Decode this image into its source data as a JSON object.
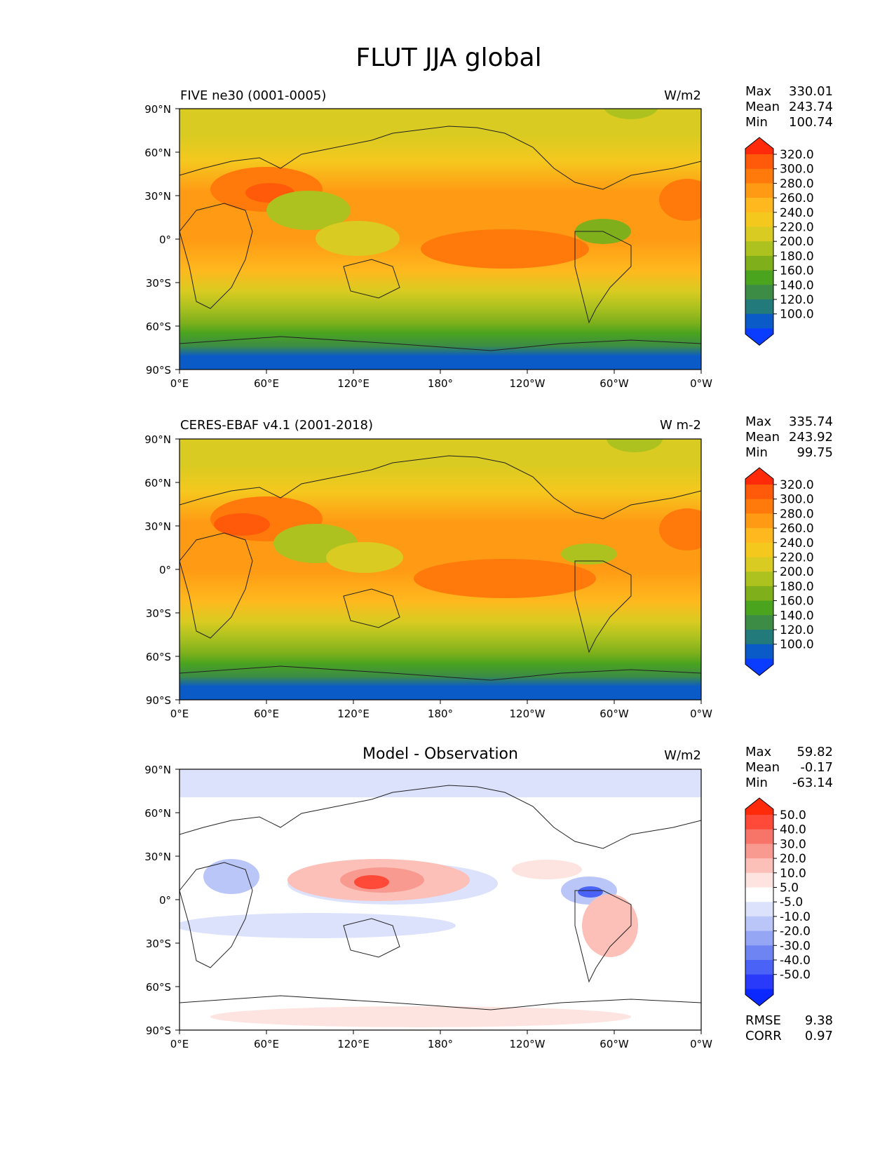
{
  "figure": {
    "title": "FLUT JJA global"
  },
  "axes": {
    "lat_ticks": [
      "90°N",
      "60°N",
      "30°N",
      "0°",
      "30°S",
      "60°S",
      "90°S"
    ],
    "lon_ticks": [
      "0°E",
      "60°E",
      "120°E",
      "180°",
      "120°W",
      "60°W",
      "0°W"
    ]
  },
  "panels": [
    {
      "id": "model",
      "left_title": "FIVE ne30 (0001-0005)",
      "center_title": "",
      "units": "W/m2",
      "stats": [
        {
          "label": "Max",
          "value": "330.01"
        },
        {
          "label": "Mean",
          "value": "243.74"
        },
        {
          "label": "Min",
          "value": "100.74"
        }
      ],
      "colorbar": {
        "labels": [
          "320.0",
          "300.0",
          "280.0",
          "260.0",
          "240.0",
          "220.0",
          "200.0",
          "180.0",
          "160.0",
          "140.0",
          "120.0",
          "100.0"
        ],
        "colors": [
          "#FF2A0A",
          "#FF5A0A",
          "#FF7A0A",
          "#FF9A14",
          "#FFB81E",
          "#F5C81E",
          "#D9CB21",
          "#ADC21F",
          "#7FB01C",
          "#4BA41E",
          "#3C8C46",
          "#237A7A",
          "#0A5AC8",
          "#0A3CFF"
        ]
      }
    },
    {
      "id": "obs",
      "left_title": "CERES-EBAF v4.1 (2001-2018)",
      "center_title": "",
      "units": "W m-2",
      "stats": [
        {
          "label": "Max",
          "value": "335.74"
        },
        {
          "label": "Mean",
          "value": "243.92"
        },
        {
          "label": "Min",
          "value": "99.75"
        }
      ],
      "colorbar": {
        "labels": [
          "320.0",
          "300.0",
          "280.0",
          "260.0",
          "240.0",
          "220.0",
          "200.0",
          "180.0",
          "160.0",
          "140.0",
          "120.0",
          "100.0"
        ],
        "colors": [
          "#FF2A0A",
          "#FF5A0A",
          "#FF7A0A",
          "#FF9A14",
          "#FFB81E",
          "#F5C81E",
          "#D9CB21",
          "#ADC21F",
          "#7FB01C",
          "#4BA41E",
          "#3C8C46",
          "#237A7A",
          "#0A5AC8",
          "#0A3CFF"
        ]
      }
    },
    {
      "id": "diff",
      "left_title": "",
      "center_title": "Model - Observation",
      "units": "W/m2",
      "stats": [
        {
          "label": "Max",
          "value": "59.82"
        },
        {
          "label": "Mean",
          "value": "-0.17"
        },
        {
          "label": "Min",
          "value": "-63.14"
        }
      ],
      "colorbar": {
        "labels": [
          "50.0",
          "40.0",
          "30.0",
          "20.0",
          "10.0",
          "5.0",
          "-5.0",
          "-10.0",
          "-20.0",
          "-30.0",
          "-40.0",
          "-50.0"
        ],
        "colors": [
          "#FF2A0A",
          "#FF4A3A",
          "#F77468",
          "#F99A90",
          "#FCC0B8",
          "#FEE4E0",
          "#FFFFFF",
          "#DCE2FC",
          "#BAC6F8",
          "#94A6F4",
          "#6E84F2",
          "#4A62F5",
          "#2A3AFA",
          "#0A28FF"
        ]
      },
      "summary": [
        {
          "label": "RMSE",
          "value": "9.38"
        },
        {
          "label": "CORR",
          "value": "0.97"
        }
      ]
    }
  ]
}
